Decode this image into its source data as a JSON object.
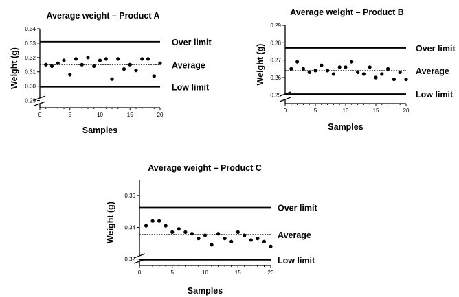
{
  "chart_data": [
    {
      "type": "scatter",
      "title": "Average weight – Product A",
      "xlabel": "Samples",
      "ylabel": "Weight (g)",
      "xlim": [
        0,
        20
      ],
      "ylim": [
        0.285,
        0.34
      ],
      "xticks": [
        "0",
        "5",
        "10",
        "15",
        "20"
      ],
      "yticks": [
        "0.29",
        "0.30",
        "0.31",
        "0.32",
        "0.33",
        "0.34"
      ],
      "axis_break": true,
      "grid": false,
      "reference_lines": [
        {
          "label": "Over limit",
          "value": 0.331,
          "style": "solid"
        },
        {
          "label": "Average",
          "value": 0.315,
          "style": "dotted"
        },
        {
          "label": "Low limit",
          "value": 0.2995,
          "style": "solid"
        }
      ],
      "series": [
        {
          "x": [
            1,
            2,
            3,
            4,
            5,
            6,
            7,
            8,
            9,
            10,
            11,
            12,
            13,
            14,
            15,
            16,
            17,
            18,
            19,
            20
          ],
          "values": [
            0.315,
            0.314,
            0.316,
            0.318,
            0.308,
            0.319,
            0.315,
            0.32,
            0.314,
            0.318,
            0.319,
            0.305,
            0.319,
            0.312,
            0.315,
            0.311,
            0.319,
            0.319,
            0.307,
            0.316
          ]
        }
      ]
    },
    {
      "type": "scatter",
      "title": "Average weight – Product B",
      "xlabel": "Samples",
      "ylabel": "Weight (g)",
      "xlim": [
        0,
        20
      ],
      "ylim": [
        0.245,
        0.29
      ],
      "xticks": [
        "0",
        "5",
        "10",
        "15",
        "20"
      ],
      "yticks": [
        "0.25",
        "0.26",
        "0.27",
        "0.28",
        "0.29"
      ],
      "axis_break": true,
      "grid": false,
      "reference_lines": [
        {
          "label": "Over limit",
          "value": 0.277,
          "style": "solid"
        },
        {
          "label": "Average",
          "value": 0.264,
          "style": "dotted"
        },
        {
          "label": "Low limit",
          "value": 0.2505,
          "style": "solid"
        }
      ],
      "series": [
        {
          "x": [
            1,
            2,
            3,
            4,
            5,
            6,
            7,
            8,
            9,
            10,
            11,
            12,
            13,
            14,
            15,
            16,
            17,
            18,
            19,
            20
          ],
          "values": [
            0.265,
            0.269,
            0.265,
            0.263,
            0.264,
            0.267,
            0.264,
            0.262,
            0.266,
            0.266,
            0.269,
            0.263,
            0.262,
            0.266,
            0.26,
            0.262,
            0.265,
            0.259,
            0.263,
            0.259
          ]
        }
      ]
    },
    {
      "type": "scatter",
      "title": "Average weight – Product C",
      "xlabel": "Samples",
      "ylabel": "Weight (g)",
      "xlim": [
        0,
        20
      ],
      "ylim": [
        0.316,
        0.37
      ],
      "xticks": [
        "0",
        "5",
        "10",
        "15",
        "20"
      ],
      "yticks": [
        "0.32",
        "0.34",
        "0.36"
      ],
      "axis_break": true,
      "grid": false,
      "reference_lines": [
        {
          "label": "Over limit",
          "value": 0.3525,
          "style": "solid"
        },
        {
          "label": "Average",
          "value": 0.3355,
          "style": "dotted"
        },
        {
          "label": "Low limit",
          "value": 0.3195,
          "style": "solid"
        }
      ],
      "series": [
        {
          "x": [
            1,
            2,
            3,
            4,
            5,
            6,
            7,
            8,
            9,
            10,
            11,
            12,
            13,
            14,
            15,
            16,
            17,
            18,
            19,
            20
          ],
          "values": [
            0.341,
            0.344,
            0.344,
            0.341,
            0.337,
            0.339,
            0.337,
            0.336,
            0.333,
            0.335,
            0.329,
            0.336,
            0.333,
            0.331,
            0.337,
            0.335,
            0.332,
            0.333,
            0.331,
            0.328
          ]
        }
      ]
    }
  ]
}
